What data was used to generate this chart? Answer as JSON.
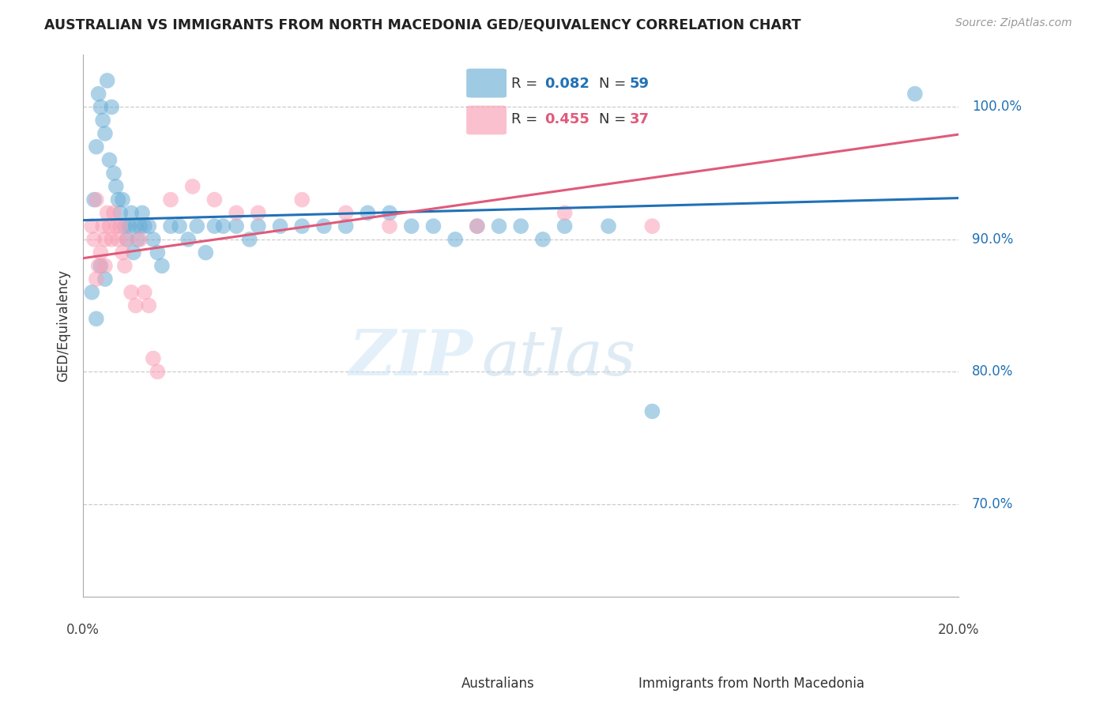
{
  "title": "AUSTRALIAN VS IMMIGRANTS FROM NORTH MACEDONIA GED/EQUIVALENCY CORRELATION CHART",
  "source": "Source: ZipAtlas.com",
  "ylabel": "GED/Equivalency",
  "xmin": 0.0,
  "xmax": 20.0,
  "ymin": 63.0,
  "ymax": 104.0,
  "blue_R": 0.082,
  "blue_N": 59,
  "pink_R": 0.455,
  "pink_N": 37,
  "blue_color": "#6baed6",
  "pink_color": "#fa9fb5",
  "blue_line_color": "#2171b5",
  "pink_line_color": "#e05a7a",
  "australians_label": "Australians",
  "immigrants_label": "Immigrants from North Macedonia",
  "watermark_zip": "ZIP",
  "watermark_atlas": "atlas",
  "background_color": "#ffffff",
  "grid_color": "#cccccc",
  "blue_x": [
    0.25,
    0.3,
    0.35,
    0.4,
    0.45,
    0.5,
    0.55,
    0.6,
    0.65,
    0.7,
    0.75,
    0.8,
    0.85,
    0.9,
    0.95,
    1.0,
    1.05,
    1.1,
    1.15,
    1.2,
    1.25,
    1.3,
    1.35,
    1.4,
    1.5,
    1.6,
    1.7,
    1.8,
    2.0,
    2.2,
    2.4,
    2.6,
    2.8,
    3.0,
    3.2,
    3.5,
    3.8,
    4.0,
    4.5,
    5.0,
    5.5,
    6.0,
    6.5,
    7.0,
    7.5,
    8.0,
    8.5,
    9.0,
    9.5,
    10.0,
    10.5,
    11.0,
    12.0,
    13.0,
    0.2,
    0.3,
    0.4,
    0.5,
    19.0
  ],
  "blue_y": [
    93,
    97,
    101,
    100,
    99,
    98,
    102,
    96,
    100,
    95,
    94,
    93,
    92,
    93,
    91,
    90,
    91,
    92,
    89,
    91,
    90,
    91,
    92,
    91,
    91,
    90,
    89,
    88,
    91,
    91,
    90,
    91,
    89,
    91,
    91,
    91,
    90,
    91,
    91,
    91,
    91,
    91,
    92,
    92,
    91,
    91,
    90,
    91,
    91,
    91,
    90,
    91,
    91,
    77,
    86,
    84,
    88,
    87,
    101
  ],
  "pink_x": [
    0.2,
    0.25,
    0.3,
    0.35,
    0.4,
    0.45,
    0.5,
    0.55,
    0.6,
    0.65,
    0.7,
    0.75,
    0.8,
    0.85,
    0.9,
    0.95,
    1.0,
    1.1,
    1.2,
    1.3,
    1.4,
    1.5,
    1.6,
    1.7,
    2.0,
    2.5,
    3.0,
    3.5,
    4.0,
    5.0,
    6.0,
    7.0,
    9.0,
    11.0,
    13.0,
    0.3,
    0.5
  ],
  "pink_y": [
    91,
    90,
    93,
    88,
    89,
    91,
    90,
    92,
    91,
    90,
    92,
    91,
    90,
    91,
    89,
    88,
    90,
    86,
    85,
    90,
    86,
    85,
    81,
    80,
    93,
    94,
    93,
    92,
    92,
    93,
    92,
    91,
    91,
    92,
    91,
    87,
    88
  ]
}
